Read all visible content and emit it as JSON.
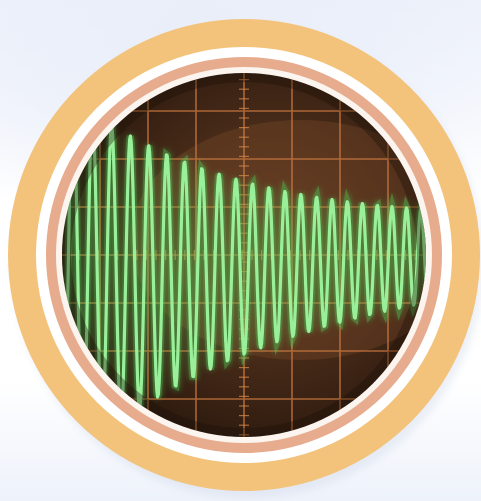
{
  "image": {
    "subject": "",
    "colors": {
      "outer_ring": "#f3c37b",
      "inner_ring": "#e7ab8d",
      "gap_ring": "#ffffff",
      "screen_dark": "#2c1a10",
      "screen_warm": "#6e4528",
      "grid": "#c8773f",
      "trace": "#8ee88a",
      "trace_glow": "#4fd15a"
    }
  }
}
